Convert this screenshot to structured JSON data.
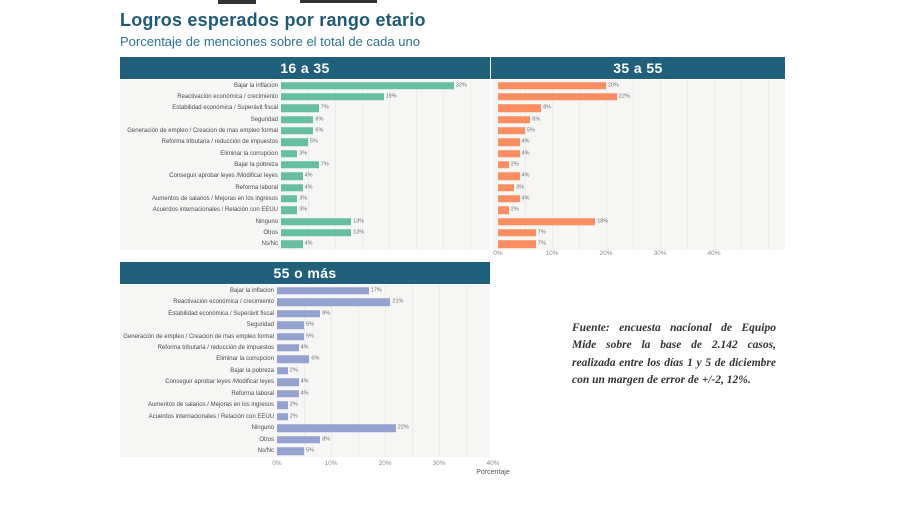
{
  "page": {
    "title": "Logros esperados por rango etario",
    "subtitle": "Porcentaje de menciones sobre el total de cada uno",
    "source_note": "Fuente: encuesta nacional de Equipo Mide sobre la base de 2.142 casos, realizada entre los días 1 y 5 de diciembre con un margen de error de +/-2, 12%."
  },
  "chart_data": {
    "type": "bar",
    "orientation": "horizontal",
    "facets_note": "three faceted bar charts by age range, value labels at bar ends",
    "categories": [
      "Bajar la inflacion",
      "Reactivación económica / crecimiento",
      "Estabilidad económica / Superávit fiscal",
      "Seguridad",
      "Generación de empleo / Creacion de mas empleo formal",
      "Reforma tributaria / reducción de impuestos",
      "Eliminar la corrupcion",
      "Bajar la pobreza",
      "Conseguir aprobar leyes /Modificar leyes",
      "Reforma laboral",
      "Aumentos de salarios / Mejoras en los ingresos",
      "Acuerdos internacionales / Relación con EEUU",
      "Ninguno",
      "Otros",
      "Ns/Nc"
    ],
    "series": [
      {
        "name": "16 a 35",
        "color": "#66BFA1",
        "values": [
          32,
          19,
          7,
          6,
          6,
          5,
          3,
          7,
          4,
          4,
          3,
          3,
          13,
          13,
          4
        ]
      },
      {
        "name": "35 a 55",
        "color": "#FA8E61",
        "values": [
          20,
          22,
          8,
          6,
          5,
          4,
          4,
          2,
          4,
          3,
          4,
          2,
          18,
          7,
          7
        ]
      },
      {
        "name": "55 o más",
        "color": "#93A2CE",
        "values": [
          17,
          21,
          8,
          5,
          5,
          4,
          6,
          2,
          4,
          4,
          2,
          2,
          22,
          8,
          5
        ]
      }
    ],
    "x_ticks": [
      "0%",
      "10%",
      "20%",
      "30%",
      "40%"
    ],
    "xlim": [
      0,
      45
    ],
    "xlabel": "Porcentaje",
    "value_suffix": "%",
    "grid": true,
    "header_band_color": "#20607B"
  }
}
